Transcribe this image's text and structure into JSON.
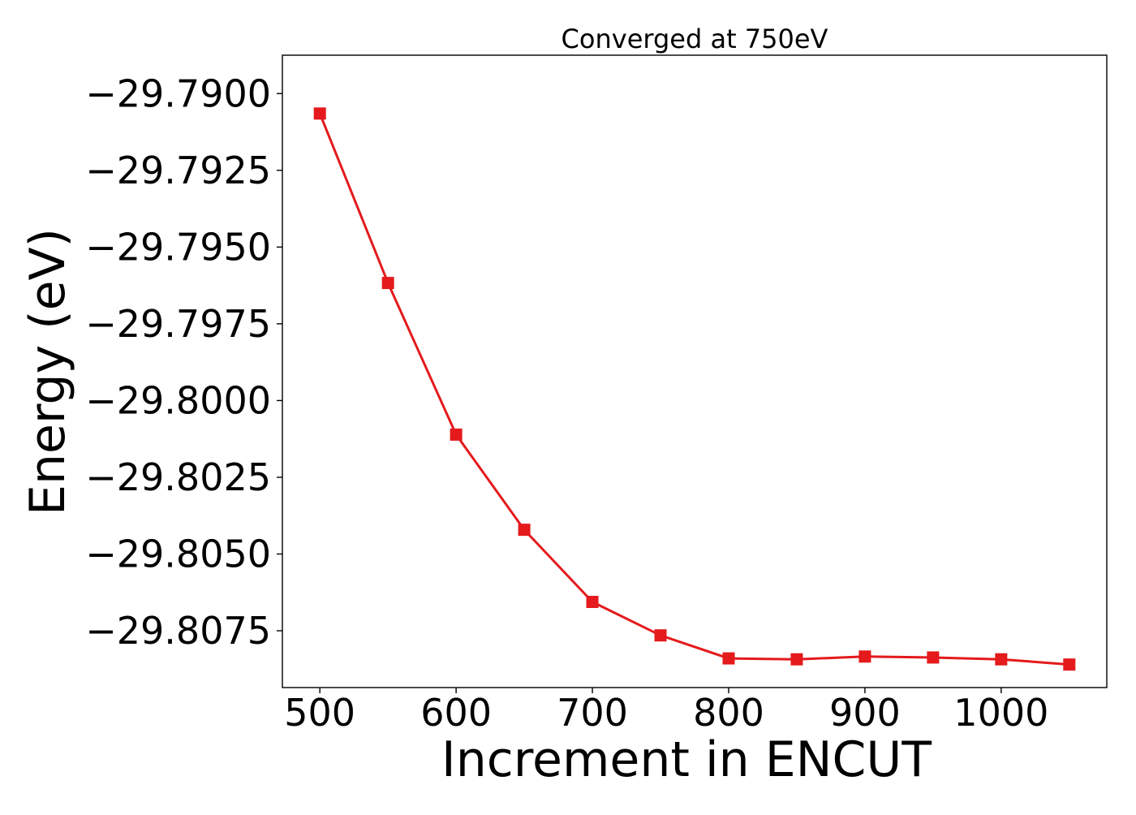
{
  "chart_data": {
    "type": "line",
    "title": "Converged at 750eV",
    "xlabel": "Increment in ENCUT",
    "ylabel": "Energy (eV)",
    "xlim": [
      472.5,
      1077.5
    ],
    "ylim": [
      -29.80935,
      -29.78875
    ],
    "xticks": [
      500,
      600,
      700,
      800,
      900,
      1000
    ],
    "xtick_labels": [
      "500",
      "600",
      "700",
      "800",
      "900",
      "1000"
    ],
    "yticks": [
      -29.79,
      -29.7925,
      -29.795,
      -29.7975,
      -29.8,
      -29.8025,
      -29.805,
      -29.8075
    ],
    "ytick_labels": [
      "−29.7900",
      "−29.7925",
      "−29.7950",
      "−29.7975",
      "−29.8000",
      "−29.8025",
      "−29.8050",
      "−29.8075"
    ],
    "grid": false,
    "series": [
      {
        "color": "#e41a1c",
        "marker": "square",
        "x": [
          500,
          550,
          600,
          650,
          700,
          750,
          800,
          850,
          900,
          950,
          1000,
          1050
        ],
        "y": [
          -29.79065,
          -29.79617,
          -29.80111,
          -29.80421,
          -29.80656,
          -29.80765,
          -29.8084,
          -29.80843,
          -29.80834,
          -29.80837,
          -29.80843,
          -29.8086
        ]
      }
    ]
  }
}
